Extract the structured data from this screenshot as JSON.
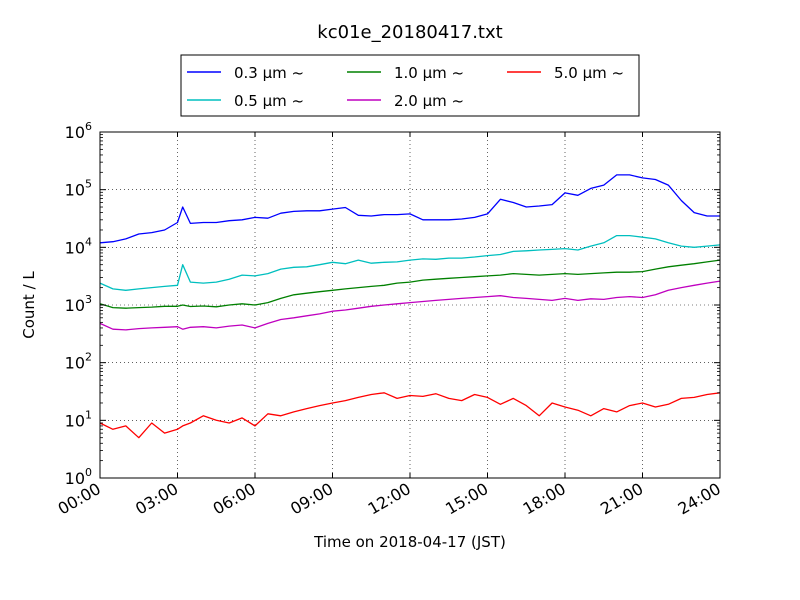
{
  "chart_data": {
    "type": "line",
    "title": "kc01e_20180417.txt",
    "xlabel": "Time on 2018-04-17 (JST)",
    "ylabel": "Count / L",
    "yscale": "log",
    "ylim": [
      1,
      1000000
    ],
    "xlim": [
      0,
      24
    ],
    "grid": true,
    "legend_placement": "top-center",
    "x_tick_labels": [
      "00:00",
      "03:00",
      "06:00",
      "09:00",
      "12:00",
      "15:00",
      "18:00",
      "21:00",
      "24:00"
    ],
    "y_tick_base": "10",
    "y_tick_exponents": [
      "0",
      "1",
      "2",
      "3",
      "4",
      "5",
      "6"
    ],
    "x": [
      0,
      0.5,
      1,
      1.5,
      2,
      2.5,
      3,
      3.2,
      3.5,
      4,
      4.5,
      5,
      5.5,
      6,
      6.5,
      7,
      7.5,
      8,
      8.5,
      9,
      9.5,
      10,
      10.5,
      11,
      11.5,
      12,
      12.5,
      13,
      13.5,
      14,
      14.5,
      15,
      15.5,
      16,
      16.5,
      17,
      17.5,
      18,
      18.5,
      19,
      19.5,
      20,
      20.5,
      21,
      21.5,
      22,
      22.5,
      23,
      23.5,
      24
    ],
    "series": [
      {
        "name": "0.3 µm ~",
        "color": "#0000ff",
        "values": [
          12000,
          12500,
          14000,
          17000,
          18000,
          20000,
          27000,
          50000,
          26000,
          27000,
          27000,
          29000,
          30000,
          33000,
          32000,
          39000,
          42000,
          43000,
          43000,
          46000,
          49000,
          36000,
          35000,
          37000,
          37000,
          38000,
          30000,
          30000,
          30000,
          31000,
          33000,
          38000,
          68000,
          60000,
          50000,
          52000,
          55000,
          88000,
          80000,
          105000,
          120000,
          180000,
          180000,
          160000,
          150000,
          120000,
          65000,
          40000,
          35000,
          35000
        ]
      },
      {
        "name": "0.5 µm ~",
        "color": "#00bfbf",
        "values": [
          2400,
          1900,
          1800,
          1900,
          2000,
          2100,
          2200,
          5000,
          2500,
          2400,
          2500,
          2800,
          3300,
          3200,
          3500,
          4200,
          4500,
          4600,
          5000,
          5500,
          5200,
          6000,
          5300,
          5500,
          5600,
          6000,
          6300,
          6200,
          6500,
          6500,
          6800,
          7200,
          7500,
          8500,
          8700,
          9000,
          9200,
          9500,
          9000,
          10500,
          12000,
          16000,
          16000,
          15000,
          14000,
          12000,
          10500,
          10000,
          10500,
          11000
        ]
      },
      {
        "name": "1.0 µm ~",
        "color": "#008000",
        "values": [
          1050,
          900,
          880,
          900,
          920,
          950,
          950,
          1000,
          940,
          960,
          930,
          1000,
          1050,
          1000,
          1100,
          1300,
          1500,
          1600,
          1700,
          1800,
          1900,
          2000,
          2100,
          2200,
          2400,
          2500,
          2700,
          2800,
          2900,
          3000,
          3100,
          3200,
          3300,
          3500,
          3400,
          3300,
          3400,
          3500,
          3400,
          3500,
          3600,
          3700,
          3700,
          3800,
          4200,
          4600,
          4900,
          5200,
          5600,
          6000
        ]
      },
      {
        "name": "2.0 µm ~",
        "color": "#bf00bf",
        "values": [
          480,
          380,
          370,
          390,
          400,
          410,
          420,
          380,
          410,
          420,
          400,
          430,
          450,
          400,
          480,
          560,
          600,
          650,
          700,
          780,
          820,
          880,
          950,
          1000,
          1050,
          1100,
          1150,
          1200,
          1250,
          1300,
          1350,
          1400,
          1450,
          1350,
          1300,
          1250,
          1200,
          1300,
          1200,
          1280,
          1250,
          1350,
          1400,
          1350,
          1500,
          1800,
          2000,
          2200,
          2400,
          2600
        ]
      },
      {
        "name": "5.0 µm ~",
        "color": "#ff0000",
        "values": [
          9,
          7,
          8,
          5,
          9,
          6,
          7,
          8,
          9,
          12,
          10,
          9,
          11,
          8,
          13,
          12,
          14,
          16,
          18,
          20,
          22,
          25,
          28,
          30,
          24,
          27,
          26,
          29,
          24,
          22,
          28,
          25,
          19,
          24,
          18,
          12,
          20,
          17,
          15,
          12,
          16,
          14,
          18,
          20,
          17,
          19,
          24,
          25,
          28,
          30
        ]
      }
    ]
  }
}
